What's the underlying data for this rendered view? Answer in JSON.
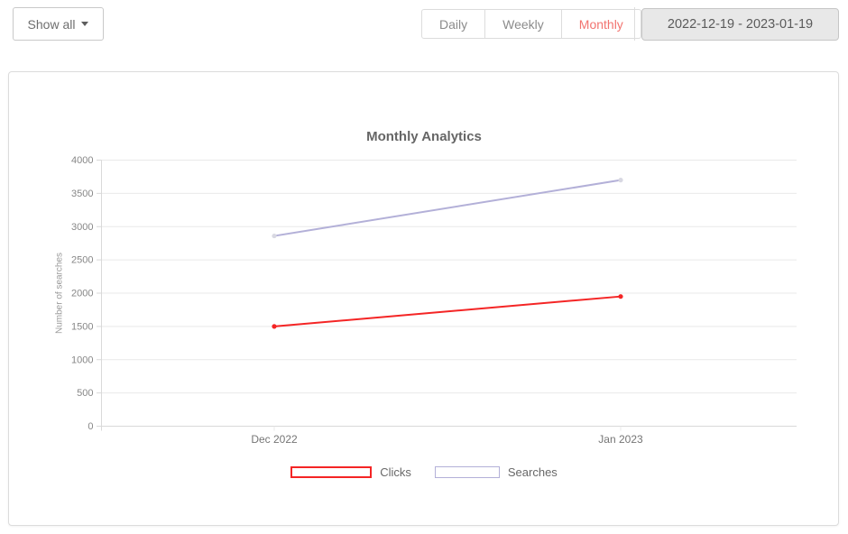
{
  "toolbar": {
    "show_all_label": "Show all",
    "tabs": [
      {
        "label": "Daily",
        "active": false
      },
      {
        "label": "Weekly",
        "active": false
      },
      {
        "label": "Monthly",
        "active": true
      }
    ],
    "date_range": "2022-12-19 - 2023-01-19"
  },
  "colors": {
    "tab_active": "#f2736f",
    "clicks": "#f42525",
    "searches": "#b3b0d8",
    "grid": "#e9e9e9",
    "axis": "#d9d9d9",
    "tick_text": "#878787",
    "category_text": "#757575"
  },
  "chart_data": {
    "type": "line",
    "title": "Monthly Analytics",
    "xlabel": "",
    "ylabel": "Number of searches",
    "categories": [
      "Dec 2022",
      "Jan 2023"
    ],
    "series": [
      {
        "name": "Clicks",
        "values": [
          1500,
          1950
        ],
        "color": "#f42525",
        "point_color": "#f42525"
      },
      {
        "name": "Searches",
        "values": [
          2860,
          3700
        ],
        "color": "#b3b0d8",
        "point_color": "#d8d8e2"
      }
    ],
    "ylim": [
      0,
      4000
    ],
    "ytick_step": 500,
    "grid": true,
    "legend_position": "bottom"
  }
}
